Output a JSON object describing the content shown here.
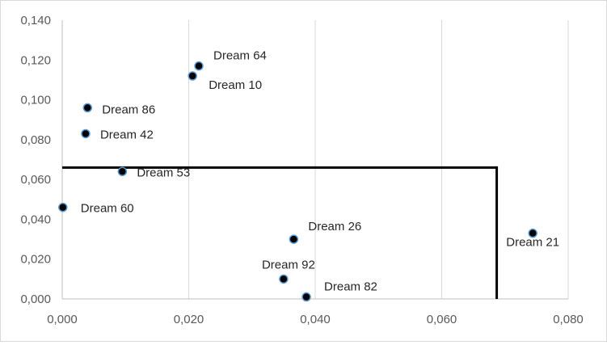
{
  "chart_data": {
    "type": "scatter",
    "title": "",
    "xlabel": "",
    "ylabel": "",
    "xlim": [
      0,
      0.08
    ],
    "ylim": [
      0,
      0.14
    ],
    "x_ticks": [
      "0,000",
      "0,020",
      "0,040",
      "0,060",
      "0,080"
    ],
    "y_ticks": [
      "0,000",
      "0,020",
      "0,040",
      "0,060",
      "0,080",
      "0,100",
      "0,120",
      "0,140"
    ],
    "grid": "vertical",
    "marker_color": "#000000",
    "marker_edge_color": "#5b9bd5",
    "threshold_lines": {
      "x": 0.0687,
      "y": 0.066,
      "color": "#000000"
    },
    "points": [
      {
        "label": "Dream 64",
        "x": 0.0216,
        "y": 0.117
      },
      {
        "label": "Dream 10",
        "x": 0.0206,
        "y": 0.112
      },
      {
        "label": "Dream 86",
        "x": 0.004,
        "y": 0.096
      },
      {
        "label": "Dream 42",
        "x": 0.0037,
        "y": 0.083
      },
      {
        "label": "Dream 53",
        "x": 0.0095,
        "y": 0.064
      },
      {
        "label": "Dream 60",
        "x": 0.0001,
        "y": 0.046
      },
      {
        "label": "Dream 26",
        "x": 0.0366,
        "y": 0.03
      },
      {
        "label": "Dream 21",
        "x": 0.0744,
        "y": 0.033
      },
      {
        "label": "Dream 92",
        "x": 0.035,
        "y": 0.01
      },
      {
        "label": "Dream 82",
        "x": 0.0386,
        "y": 0.001
      }
    ]
  }
}
